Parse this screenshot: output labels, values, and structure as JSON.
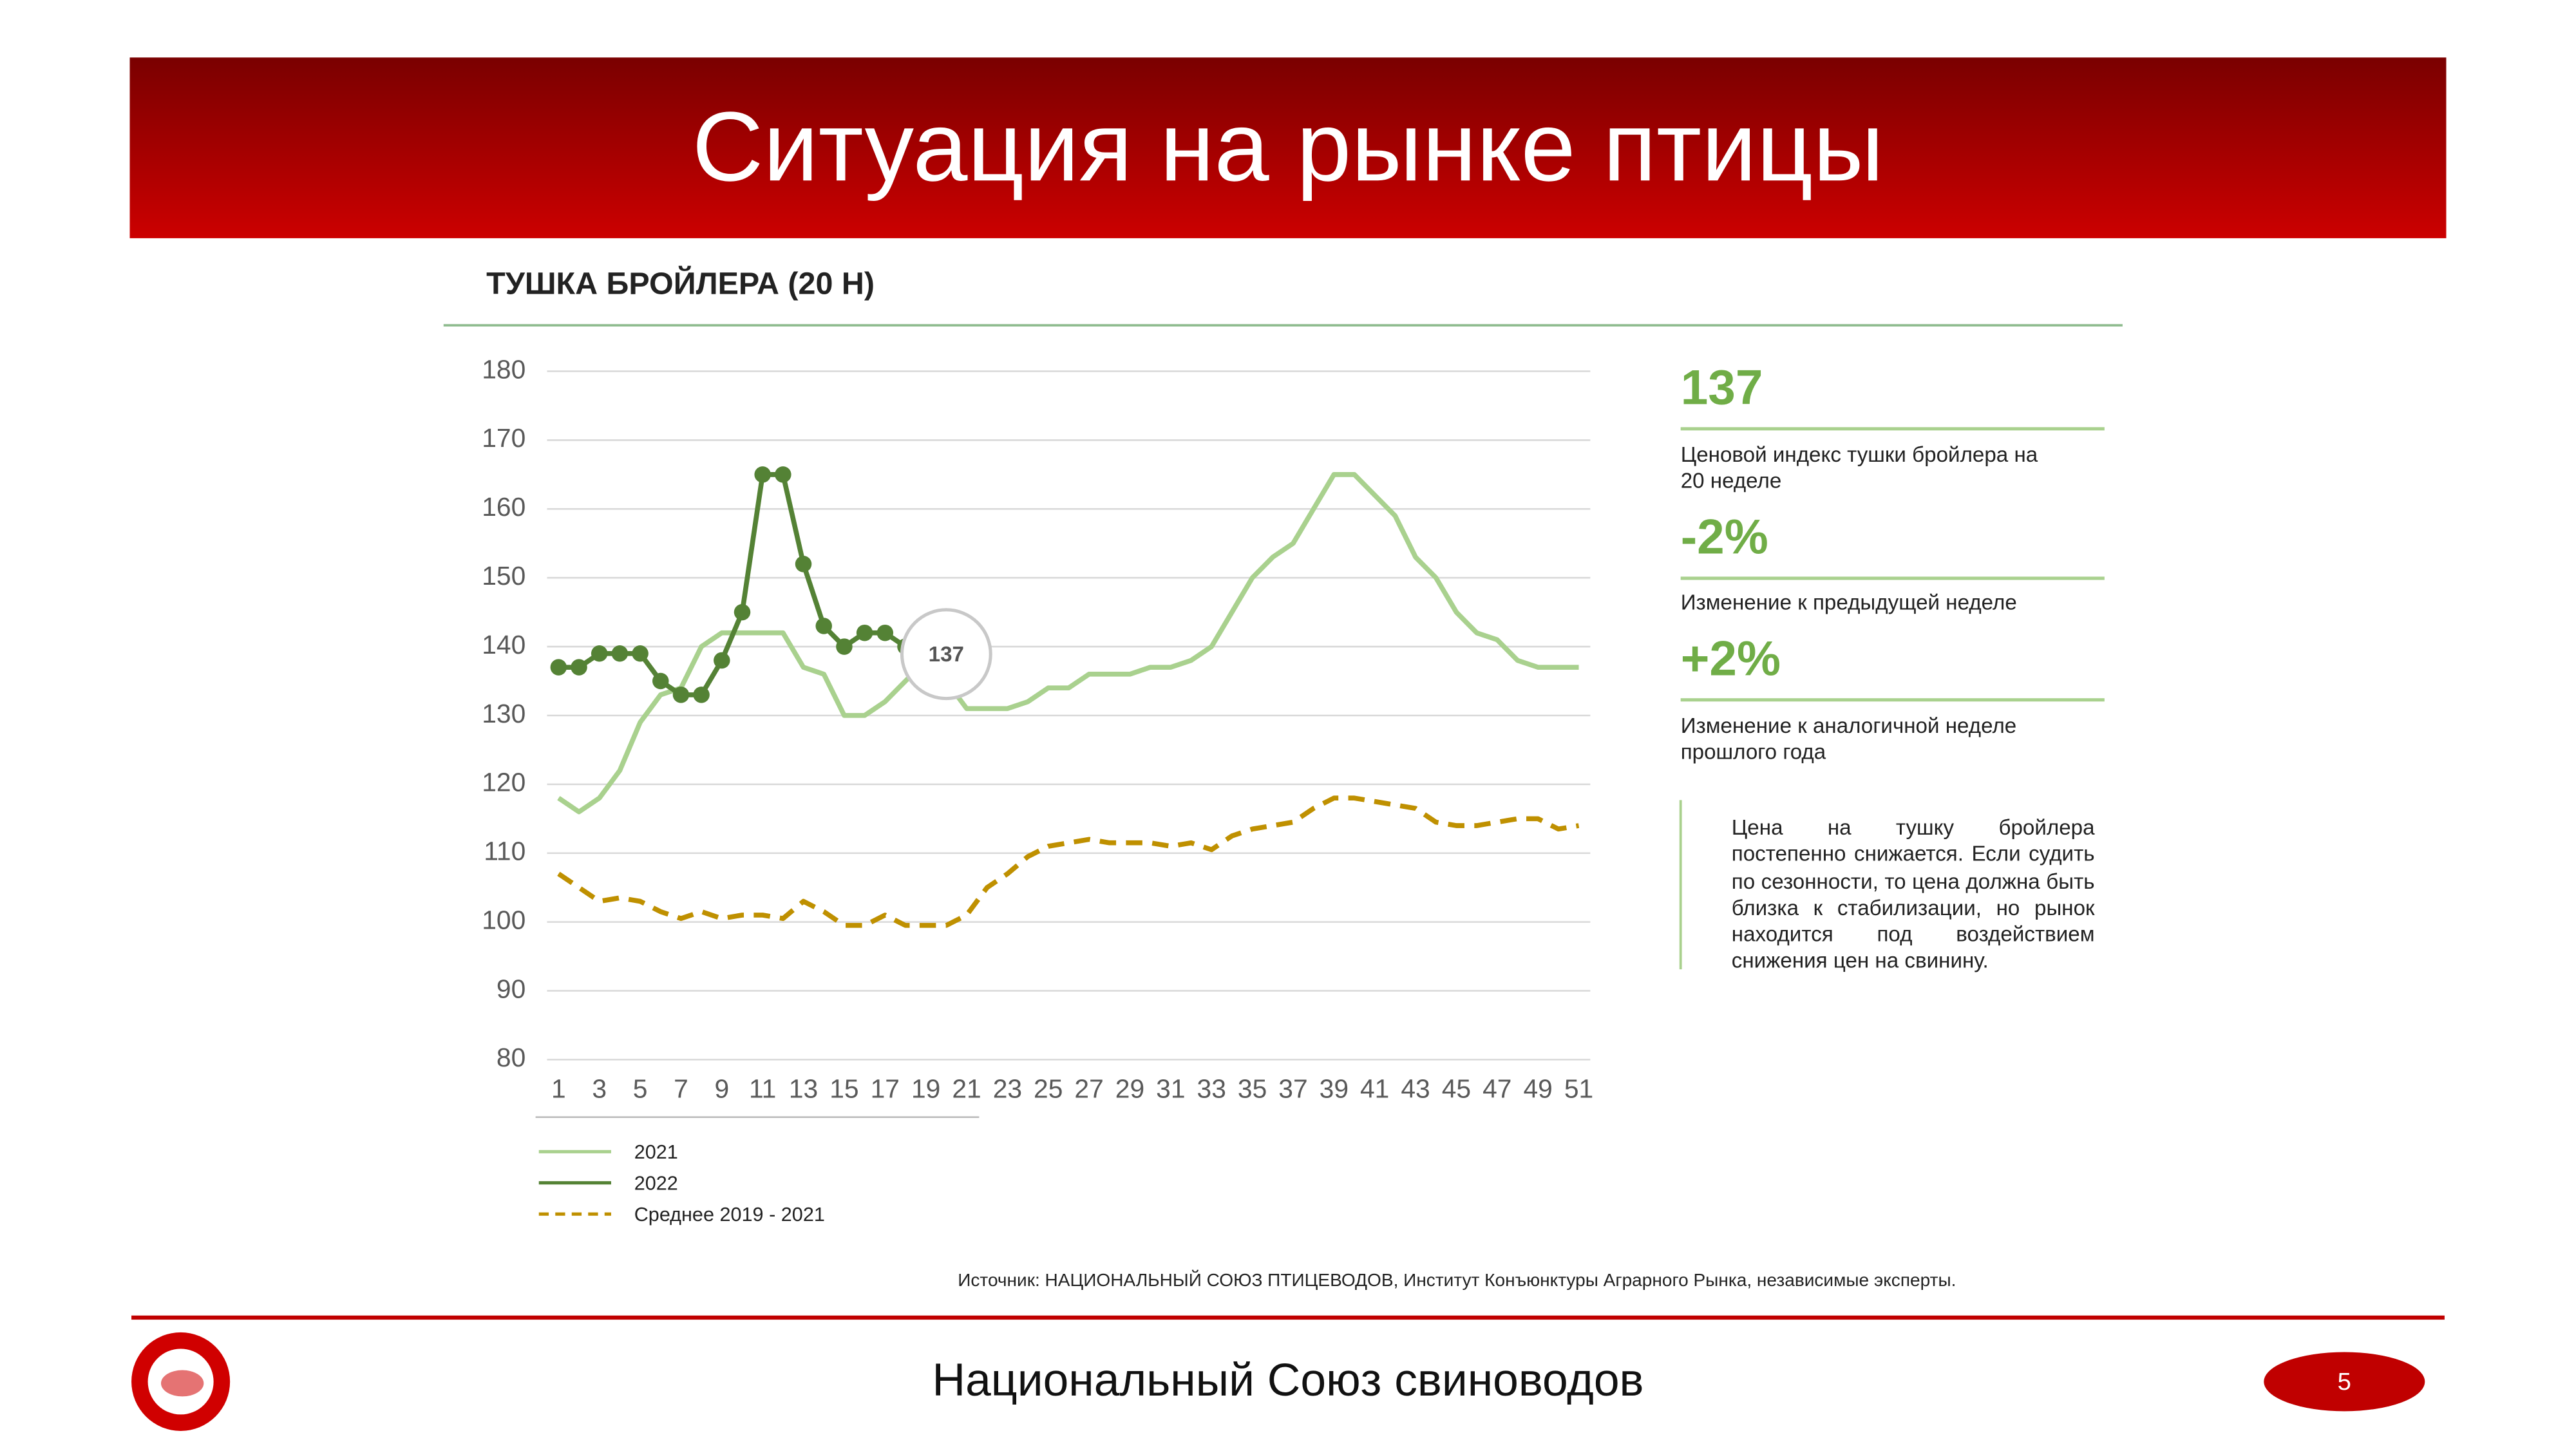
{
  "slide": {
    "title": "Ситуация на рынке птицы",
    "source": "Источник: НАЦИОНАЛЬНЫЙ СОЮЗ ПТИЦЕВОДОВ, Институт Конъюнктуры Аграрного Рынка, независимые эксперты.",
    "footer": "Национальный Союз свиноводов",
    "page_number": "5"
  },
  "chart_data": {
    "type": "line",
    "title": "ТУШКА БРОЙЛЕРА (20 Н)",
    "x": [
      1,
      2,
      3,
      4,
      5,
      6,
      7,
      8,
      9,
      10,
      11,
      12,
      13,
      14,
      15,
      16,
      17,
      18,
      19,
      20,
      21,
      22,
      23,
      24,
      25,
      26,
      27,
      28,
      29,
      30,
      31,
      32,
      33,
      34,
      35,
      36,
      37,
      38,
      39,
      40,
      41,
      42,
      43,
      44,
      45,
      46,
      47,
      48,
      49,
      50,
      51
    ],
    "xlim": [
      1,
      51
    ],
    "xticks": [
      1,
      3,
      5,
      7,
      9,
      11,
      13,
      15,
      17,
      19,
      21,
      23,
      25,
      27,
      29,
      31,
      33,
      35,
      37,
      39,
      41,
      43,
      45,
      47,
      49,
      51
    ],
    "ylim": [
      80,
      180
    ],
    "yticks": [
      80,
      90,
      100,
      110,
      120,
      130,
      140,
      150,
      160,
      170,
      180
    ],
    "grid": true,
    "series": [
      {
        "name": "2021",
        "color": "#a9d18e",
        "values": [
          118,
          116,
          118,
          122,
          129,
          133,
          134,
          140,
          142,
          142,
          142,
          142,
          137,
          136,
          130,
          130,
          132,
          135,
          138,
          135,
          131,
          131,
          131,
          132,
          134,
          134,
          136,
          136,
          136,
          137,
          137,
          138,
          140,
          145,
          150,
          153,
          155,
          160,
          165,
          165,
          162,
          159,
          153,
          150,
          145,
          142,
          141,
          138,
          137,
          137,
          137
        ]
      },
      {
        "name": "2022",
        "color": "#548235",
        "markers": true,
        "values": [
          137,
          137,
          139,
          139,
          139,
          135,
          133,
          133,
          138,
          145,
          165,
          165,
          152,
          143,
          140,
          142,
          142,
          140,
          139,
          137,
          null,
          null,
          null,
          null,
          null,
          null,
          null,
          null,
          null,
          null,
          null,
          null,
          null,
          null,
          null,
          null,
          null,
          null,
          null,
          null,
          null,
          null,
          null,
          null,
          null,
          null,
          null,
          null,
          null,
          null,
          null
        ]
      },
      {
        "name": "Среднее 2019 - 2021",
        "color": "#bf9000",
        "dash": true,
        "values": [
          107,
          105,
          103,
          103.5,
          103,
          101.5,
          100.5,
          101.5,
          100.5,
          101,
          101,
          100.5,
          103,
          101.5,
          99.5,
          99.5,
          101,
          99.5,
          99.5,
          99.5,
          101,
          105,
          107,
          109.5,
          111,
          111.5,
          112,
          111.5,
          111.5,
          111.5,
          111,
          111.5,
          110.5,
          112.5,
          113.5,
          114,
          114.5,
          116.5,
          118,
          118,
          117.5,
          117,
          116.5,
          114.5,
          114,
          114,
          114.5,
          115,
          115,
          113.5,
          114
        ]
      }
    ],
    "annotation": {
      "x": 20,
      "y": 137,
      "text": "137"
    }
  },
  "stats": [
    {
      "value": "137",
      "label": "Ценовой индекс тушки бройлера на 20 неделе"
    },
    {
      "value": "-2%",
      "label": "Изменение к предыдущей неделе"
    },
    {
      "value": "+2%",
      "label": "Изменение к аналогичной неделе прошлого года"
    }
  ],
  "comment": "Цена на тушку бройлера постепенно снижается. Если судить по сезонности, то цена должна быть близка к стабилизации, но рынок находится под воздействием снижения цен на свинину."
}
